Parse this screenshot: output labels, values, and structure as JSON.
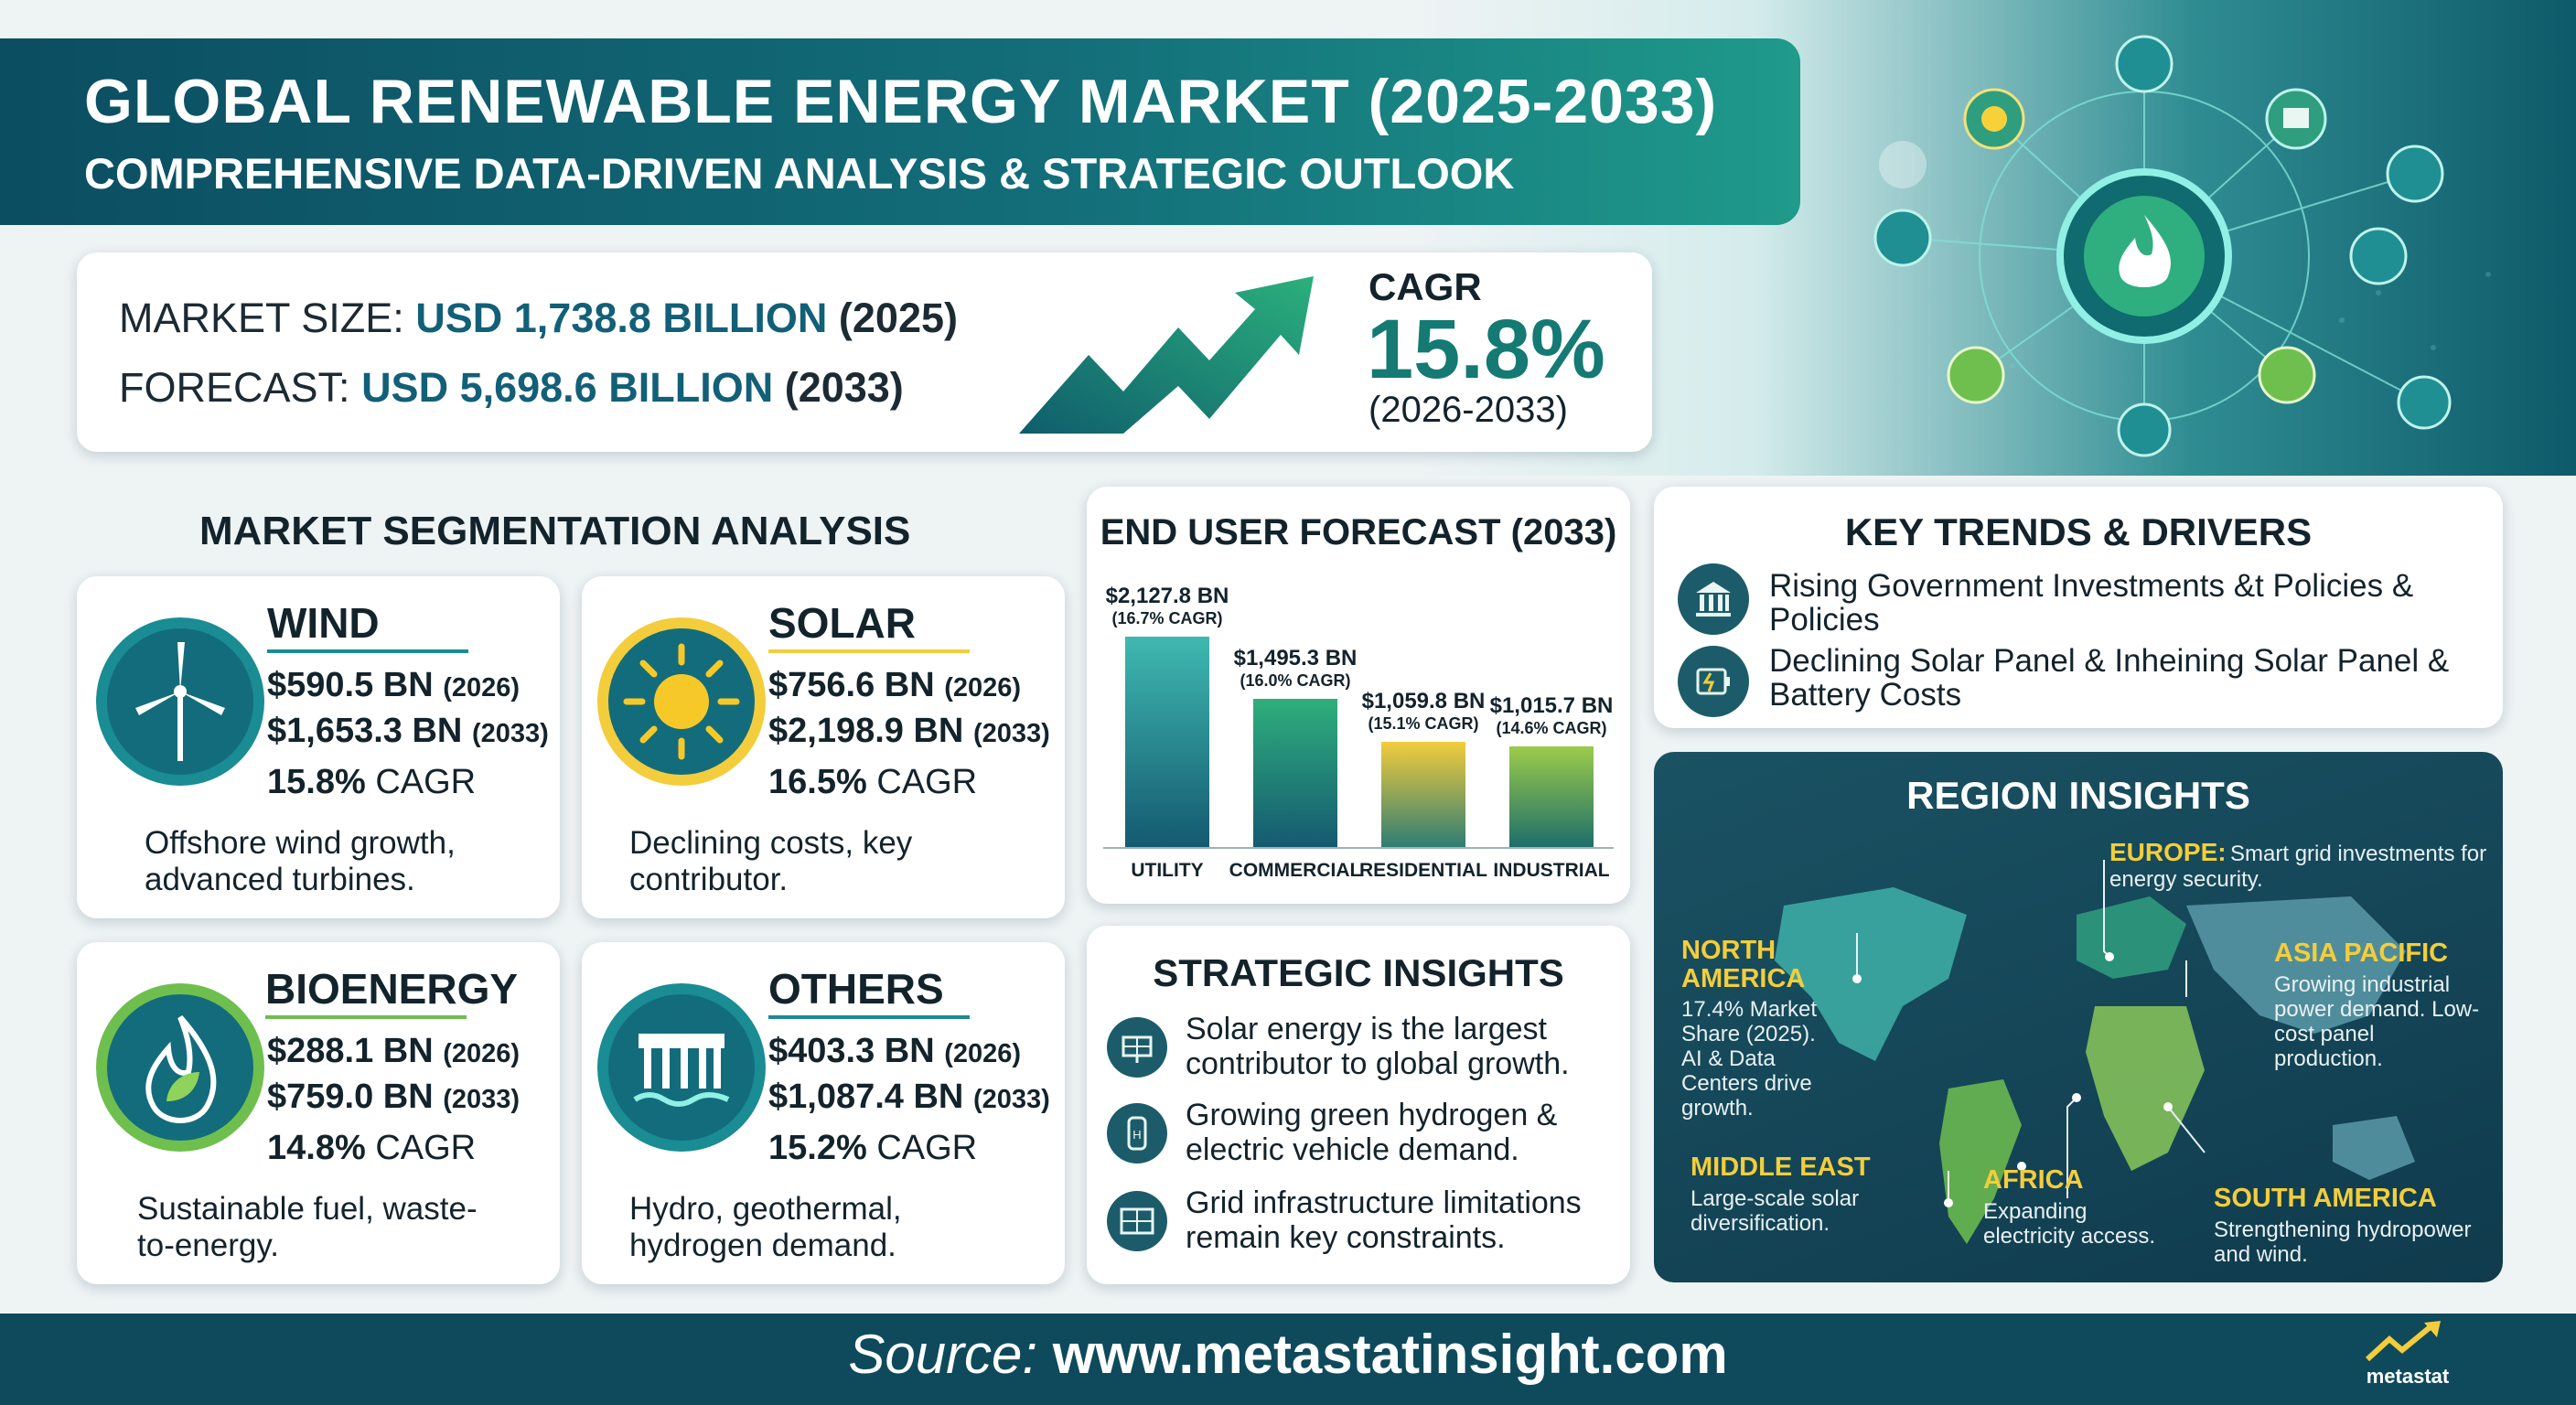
{
  "header": {
    "title": "GLOBAL RENEWABLE ENERGY MARKET (2025-2033)",
    "subtitle": "COMPREHENSIVE DATA-DRIVEN ANALYSIS & STRATEGIC OUTLOOK"
  },
  "market": {
    "size_label": "MARKET SIZE:",
    "size_value": "USD 1,738.8 BILLION",
    "size_year": "(2025)",
    "forecast_label": "FORECAST:",
    "forecast_value": "USD 5,698.6 BILLION",
    "forecast_year": "(2033)",
    "cagr_label": "CAGR",
    "cagr_value": "15.8%",
    "cagr_period": "(2026-2033)"
  },
  "segmentation": {
    "title": "MARKET SEGMENTATION ANALYSIS",
    "segments": [
      {
        "name": "WIND",
        "v1": "$590.5 BN",
        "y1": "(2026)",
        "v2": "$1,653.3 BN",
        "y2": "(2033)",
        "cagr": "15.8%",
        "cagr_suffix": "CAGR",
        "desc": "Offshore wind growth, advanced turbines.",
        "icon": "wind-turbine-icon"
      },
      {
        "name": "SOLAR",
        "v1": "$756.6 BN",
        "y1": "(2026)",
        "v2": "$2,198.9 BN",
        "y2": "(2033)",
        "cagr": "16.5%",
        "cagr_suffix": "CAGR",
        "desc": "Declining costs, key contributor.",
        "icon": "sun-icon"
      },
      {
        "name": "BIOENERGY",
        "v1": "$288.1 BN",
        "y1": "(2026)",
        "v2": "$759.0 BN",
        "y2": "(2033)",
        "cagr": "14.8%",
        "cagr_suffix": "CAGR",
        "desc": "Sustainable fuel, waste-to-energy.",
        "icon": "flame-leaf-icon"
      },
      {
        "name": "OTHERS",
        "v1": "$403.3 BN",
        "y1": "(2026)",
        "v2": "$1,087.4 BN",
        "y2": "(2033)",
        "cagr": "15.2%",
        "cagr_suffix": "CAGR",
        "desc": "Hydro, geothermal, hydrogen demand.",
        "icon": "dam-icon"
      }
    ]
  },
  "chart_data": {
    "type": "bar",
    "title": "END USER FORECAST (2033)",
    "categories": [
      "UTILITY",
      "COMMERCIAL",
      "RESIDENTIAL",
      "INDUSTRIAL"
    ],
    "values": [
      2127.8,
      1495.3,
      1059.8,
      1015.7
    ],
    "value_labels": [
      "$2,127.8 BN",
      "$1,495.3 BN",
      "$1,059.8 BN",
      "$1,015.7 BN"
    ],
    "cagr_labels": [
      "(16.7% CAGR)",
      "(16.0% CAGR)",
      "(15.1% CAGR)",
      "(14.6% CAGR)"
    ],
    "colors": [
      [
        "#3fb8b0",
        "#145a70"
      ],
      [
        "#2fae7c",
        "#145a70"
      ],
      [
        "#f3cd3c",
        "#2e7d73"
      ],
      [
        "#9ccc4a",
        "#1d6e6a"
      ]
    ],
    "ylim": [
      0,
      2127.8
    ],
    "grid": false
  },
  "strategic": {
    "title": "STRATEGIC INSIGHTS",
    "items": [
      {
        "text": "Solar energy is the largest contributor to global growth.",
        "icon": "solar-panel-icon"
      },
      {
        "text": "Growing green hydrogen & electric vehicle demand.",
        "icon": "hydrogen-icon"
      },
      {
        "text": "Grid infrastructure limitations remain key constraints.",
        "icon": "grid-icon"
      }
    ]
  },
  "trends": {
    "title": "KEY TRENDS & DRIVERS",
    "items": [
      {
        "text": "Rising Government Investments &t Policies & Policies",
        "icon": "government-building-icon"
      },
      {
        "text": "Declining Solar Panel & Inheining Solar Panel & Battery Costs",
        "icon": "battery-icon"
      }
    ]
  },
  "regions": {
    "title": "REGION INSIGHTS",
    "europe_name": "EUROPE:",
    "europe_desc": "Smart grid investments for energy security.",
    "north_america_name": "NORTH AMERICA",
    "north_america_desc": "17.4% Market Share (2025). AI & Data Centers drive growth.",
    "asia_pacific_name": "ASIA PACIFIC",
    "asia_pacific_desc": "Growing industrial power demand. Low-cost panel production.",
    "middle_east_name": "MIDDLE EAST",
    "middle_east_desc": "Large-scale solar diversification.",
    "africa_name": "AFRICA",
    "africa_desc": "Expanding electricity access.",
    "south_america_name": "SOUTH AMERICA",
    "south_america_desc": "Strengthening hydropower and wind."
  },
  "footer": {
    "source_label": "Source:",
    "source_url": "www.metastatinsight.com",
    "logo_text": "metastat"
  }
}
